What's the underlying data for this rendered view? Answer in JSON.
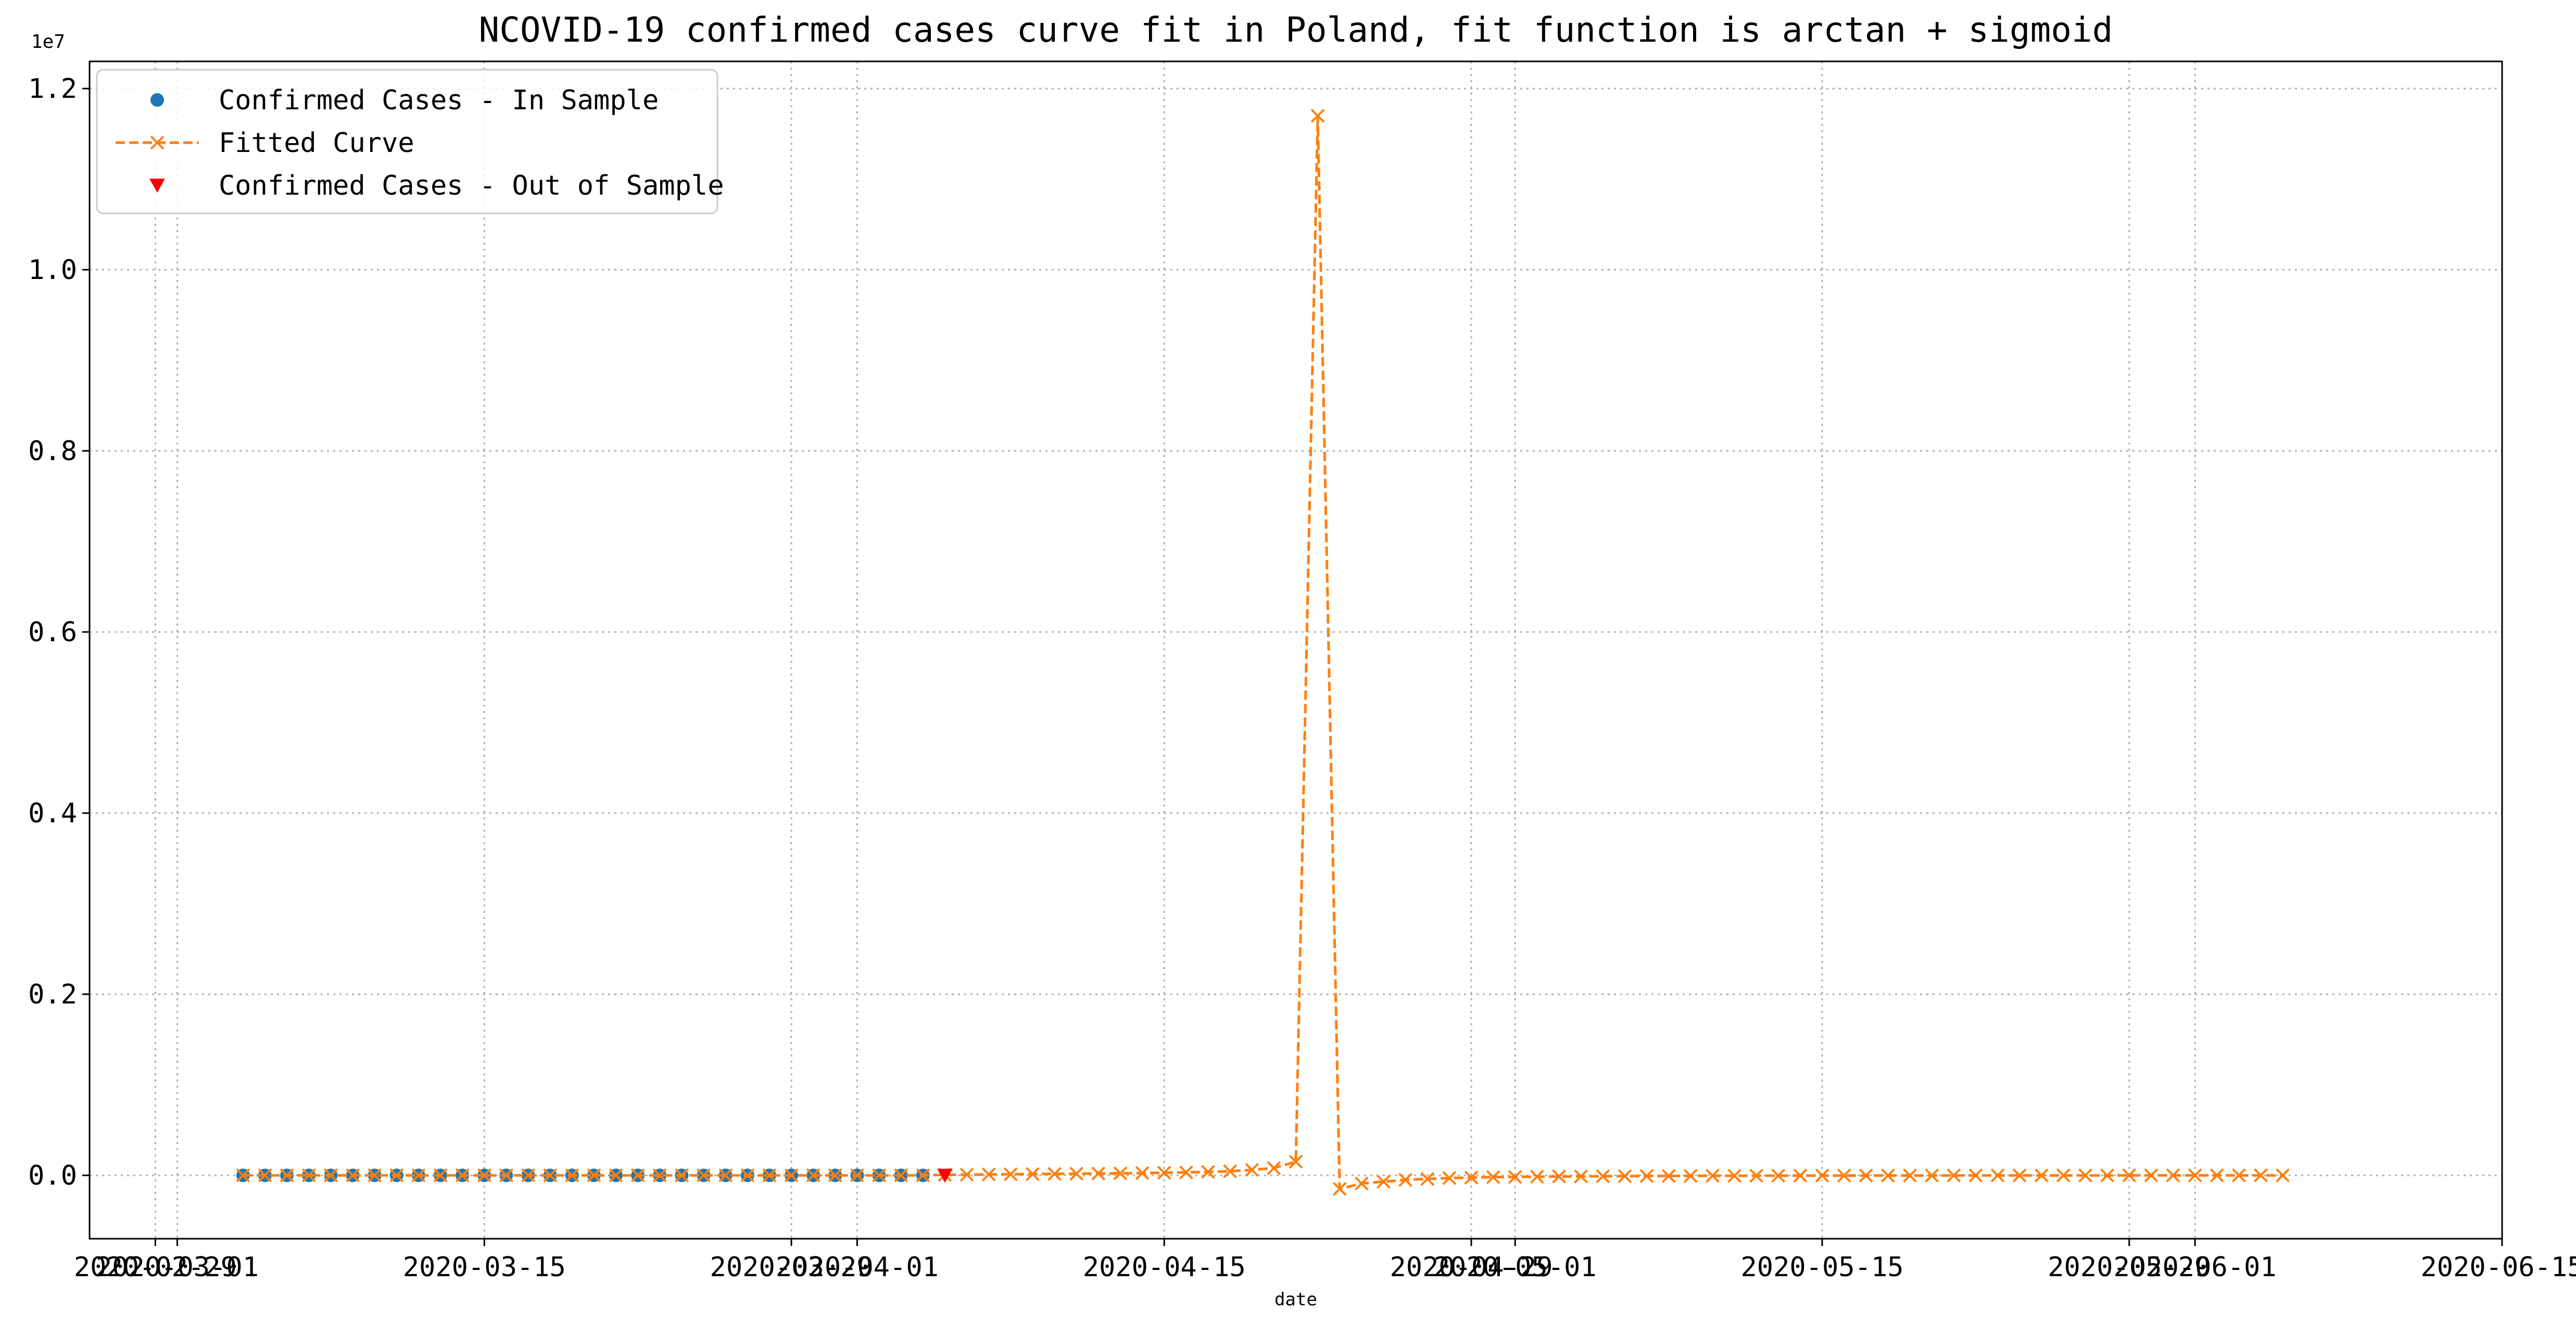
{
  "chart_data": {
    "type": "line",
    "title": "NCOVID-19 confirmed cases curve fit in Poland, fit function is arctan + sigmoid",
    "xlabel": "date",
    "ylabel": "",
    "y_offset_label": "1e7",
    "xlim": [
      "2020-02-26",
      "2020-06-15"
    ],
    "ylim": [
      -0.07,
      1.23
    ],
    "y_scale": 10000000,
    "grid": true,
    "legend_position": "upper left",
    "x_ticks": [
      {
        "date": "2020-02-29",
        "label": "2020-02-29"
      },
      {
        "date": "2020-03-01",
        "label": "2020-03-01"
      },
      {
        "date": "2020-03-15",
        "label": "2020-03-15"
      },
      {
        "date": "2020-03-29",
        "label": "2020-03-29"
      },
      {
        "date": "2020-04-01",
        "label": "2020-04-01"
      },
      {
        "date": "2020-04-15",
        "label": "2020-04-15"
      },
      {
        "date": "2020-04-29",
        "label": "2020-04-29"
      },
      {
        "date": "2020-05-01",
        "label": "2020-05-01"
      },
      {
        "date": "2020-05-15",
        "label": "2020-05-15"
      },
      {
        "date": "2020-05-29",
        "label": "2020-05-29"
      },
      {
        "date": "2020-06-01",
        "label": "2020-06-01"
      },
      {
        "date": "2020-06-15",
        "label": "2020-06-15"
      }
    ],
    "y_ticks": [
      {
        "value": 0.0,
        "label": "0.0"
      },
      {
        "value": 0.2,
        "label": "0.2"
      },
      {
        "value": 0.4,
        "label": "0.4"
      },
      {
        "value": 0.6,
        "label": "0.6"
      },
      {
        "value": 0.8,
        "label": "0.8"
      },
      {
        "value": 1.0,
        "label": "1.0"
      },
      {
        "value": 1.2,
        "label": "1.2"
      }
    ],
    "series": [
      {
        "name": "Confirmed Cases - In Sample",
        "kind": "scatter",
        "marker": "circle",
        "color": "#1f77b4",
        "start_date": "2020-03-04",
        "values": [
          0,
          0,
          0,
          0,
          0,
          0,
          0,
          0,
          0,
          0,
          0,
          0,
          0,
          0,
          0,
          0,
          0,
          0,
          0,
          0,
          0,
          0,
          0,
          0,
          0,
          0,
          0,
          0,
          0,
          0,
          0,
          0
        ]
      },
      {
        "name": "Fitted Curve",
        "kind": "line",
        "marker": "x",
        "color": "#ff7f0e",
        "start_date": "2020-03-04",
        "values": [
          0,
          0,
          0,
          0,
          0,
          0,
          0,
          0,
          0,
          0,
          0,
          0,
          0,
          0,
          0,
          0,
          0,
          0,
          0,
          0,
          0,
          0,
          0,
          0,
          0,
          0,
          0,
          0,
          0,
          0,
          0,
          0,
          0.0005,
          0.0007,
          0.001,
          0.0012,
          0.0014,
          0.0016,
          0.0018,
          0.002,
          0.0022,
          0.0025,
          0.0028,
          0.0032,
          0.0038,
          0.0045,
          0.006,
          0.008,
          0.015,
          1.17,
          -0.015,
          -0.009,
          -0.007,
          -0.005,
          -0.004,
          -0.003,
          -0.0025,
          -0.002,
          -0.0018,
          -0.0015,
          -0.0013,
          -0.0012,
          -0.001,
          -0.0009,
          -0.0008,
          -0.0007,
          -0.0006,
          -0.0005,
          -0.0005,
          -0.0004,
          -0.0004,
          -0.0003,
          -0.0003,
          -0.0003,
          -0.0002,
          -0.0002,
          -0.0002,
          -0.0002,
          -0.0001,
          -0.0001,
          -0.0001,
          -0.0001,
          -0.0001,
          -0.0001,
          -0.0001,
          -0.0001,
          0,
          0,
          0,
          0,
          0,
          0,
          0,
          0
        ]
      },
      {
        "name": "Confirmed Cases - Out of Sample",
        "kind": "scatter",
        "marker": "triangle-down",
        "color": "#ff0000",
        "start_date": "2020-04-05",
        "values": [
          0
        ]
      }
    ]
  }
}
